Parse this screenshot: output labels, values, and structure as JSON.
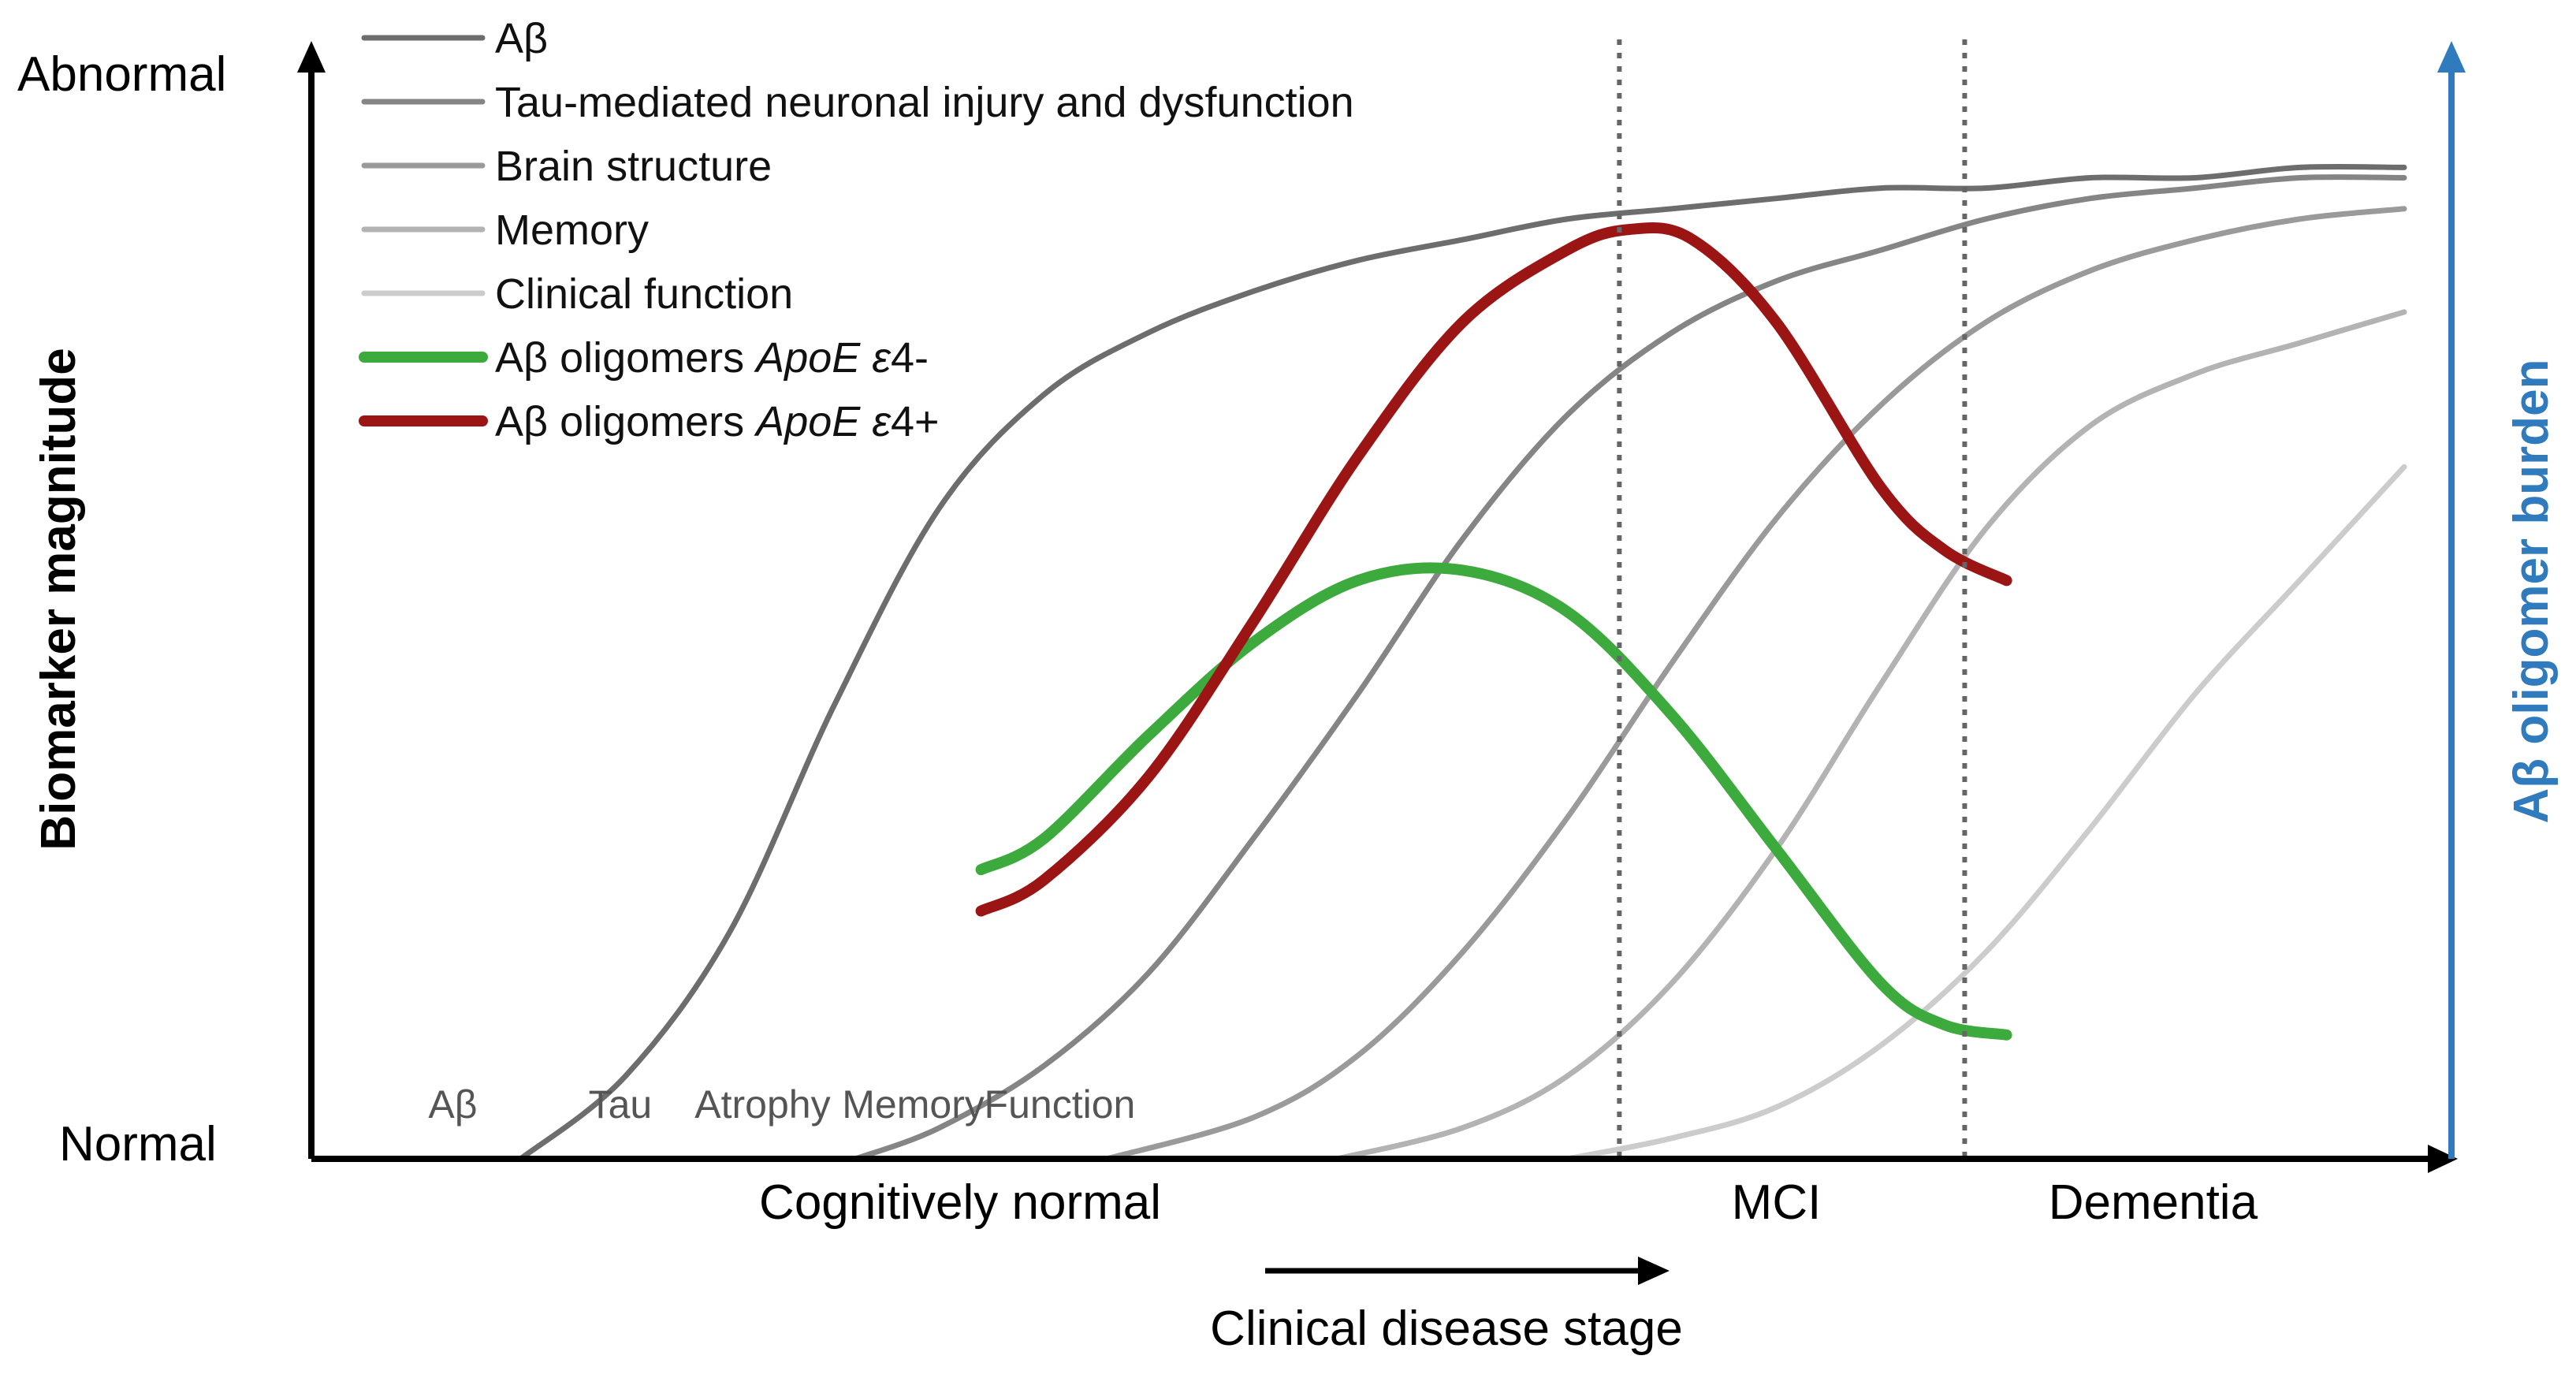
{
  "chart_data": {
    "type": "line",
    "title": "",
    "xlabel": "Clinical disease stage",
    "ylabel": "Biomarker magnitude",
    "y2label": "Aβ oligomer burden",
    "y_top_label": "Abnormal",
    "y_bottom_label": "Normal",
    "stages": [
      "Cognitively normal",
      "MCI",
      "Dementia"
    ],
    "stage_boundaries": [
      0.625,
      0.79
    ],
    "markers": [
      "Aβ",
      "Tau",
      "Atrophy",
      "Memory",
      "Function"
    ],
    "xlim": [
      0,
      1
    ],
    "ylim": [
      0,
      1
    ],
    "grid": false,
    "legend_position": "top-left",
    "series": [
      {
        "name": "Aβ",
        "color": "#6d6d6d",
        "width": 7,
        "shape": "sigmoid",
        "x": [
          0.1,
          0.15,
          0.2,
          0.25,
          0.3,
          0.35,
          0.4,
          0.45,
          0.5,
          0.55,
          0.6,
          0.65,
          0.7,
          0.75,
          0.8,
          0.85,
          0.9,
          0.95,
          1.0
        ],
        "y": [
          0.0,
          0.08,
          0.22,
          0.44,
          0.63,
          0.74,
          0.8,
          0.84,
          0.87,
          0.89,
          0.91,
          0.92,
          0.93,
          0.94,
          0.94,
          0.95,
          0.95,
          0.96,
          0.96
        ]
      },
      {
        "name": "Tau-mediated neuronal injury and dysfunction",
        "color": "#858585",
        "width": 7,
        "shape": "sigmoid",
        "x": [
          0.26,
          0.3,
          0.35,
          0.4,
          0.45,
          0.5,
          0.55,
          0.6,
          0.65,
          0.7,
          0.75,
          0.8,
          0.85,
          0.9,
          0.95,
          1.0
        ],
        "y": [
          0.0,
          0.03,
          0.09,
          0.18,
          0.31,
          0.45,
          0.6,
          0.72,
          0.8,
          0.85,
          0.88,
          0.91,
          0.93,
          0.94,
          0.95,
          0.95
        ]
      },
      {
        "name": "Brain structure",
        "color": "#9a9a9a",
        "width": 7,
        "shape": "sigmoid",
        "x": [
          0.38,
          0.45,
          0.5,
          0.55,
          0.6,
          0.65,
          0.7,
          0.75,
          0.8,
          0.85,
          0.9,
          0.95,
          1.0
        ],
        "y": [
          0.0,
          0.04,
          0.1,
          0.2,
          0.33,
          0.48,
          0.62,
          0.73,
          0.81,
          0.86,
          0.89,
          0.91,
          0.92
        ]
      },
      {
        "name": "Memory",
        "color": "#b3b3b3",
        "width": 7,
        "shape": "sigmoid",
        "x": [
          0.49,
          0.55,
          0.6,
          0.65,
          0.7,
          0.75,
          0.8,
          0.85,
          0.9,
          0.95,
          1.0
        ],
        "y": [
          0.0,
          0.03,
          0.08,
          0.17,
          0.3,
          0.46,
          0.61,
          0.71,
          0.76,
          0.79,
          0.82
        ]
      },
      {
        "name": "Clinical function",
        "color": "#cccccc",
        "width": 7,
        "shape": "sigmoid",
        "x": [
          0.6,
          0.65,
          0.7,
          0.75,
          0.8,
          0.85,
          0.9,
          0.95,
          1.0
        ],
        "y": [
          0.0,
          0.02,
          0.05,
          0.11,
          0.2,
          0.32,
          0.45,
          0.56,
          0.67
        ]
      },
      {
        "name": "Aβ oligomers ApoE ε4-",
        "color": "#3daa3d",
        "width": 14,
        "shape": "peak",
        "x": [
          0.32,
          0.35,
          0.4,
          0.45,
          0.5,
          0.55,
          0.6,
          0.65,
          0.7,
          0.75,
          0.78,
          0.81
        ],
        "y": [
          0.28,
          0.31,
          0.41,
          0.5,
          0.56,
          0.57,
          0.53,
          0.43,
          0.3,
          0.17,
          0.13,
          0.12
        ]
      },
      {
        "name": "Aβ oligomers ApoE ε4+",
        "color": "#9b1515",
        "width": 14,
        "shape": "peak",
        "x": [
          0.32,
          0.35,
          0.4,
          0.45,
          0.5,
          0.55,
          0.6,
          0.63,
          0.66,
          0.7,
          0.75,
          0.78,
          0.81
        ],
        "y": [
          0.24,
          0.27,
          0.37,
          0.52,
          0.68,
          0.81,
          0.88,
          0.9,
          0.89,
          0.81,
          0.65,
          0.59,
          0.56
        ]
      }
    ]
  }
}
